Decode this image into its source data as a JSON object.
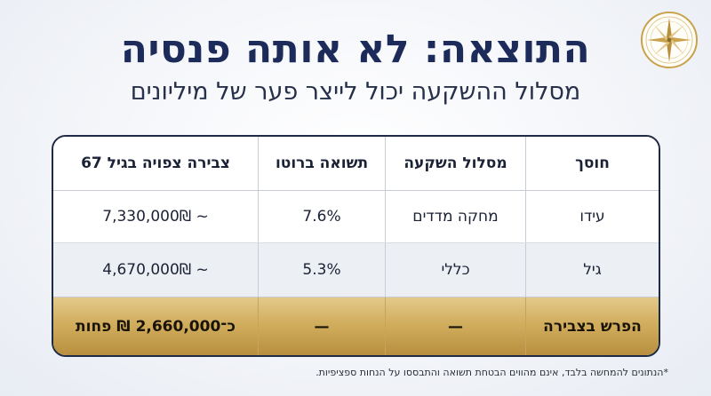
{
  "header": {
    "title": "התוצאה: לא אותה פנסיה",
    "subtitle": "מסלול ההשקעה יכול לייצר פער של מיליונים"
  },
  "logo": {
    "icon": "compass-rose-icon",
    "color": "#c9a24c"
  },
  "table": {
    "columns": [
      "חוסך",
      "מסלול השקעה",
      "תשואה ברוטו",
      "צבירה צפויה בגיל 67"
    ],
    "rows": [
      {
        "saver": "עידו",
        "track": "מחקה מדדים",
        "return": "7.6%",
        "accumulation": "7,330,000₪ ~"
      },
      {
        "saver": "גיל",
        "track": "כללי",
        "return": "5.3%",
        "accumulation": "4,670,000₪ ~"
      }
    ],
    "total": {
      "label": "הפרש בצבירה",
      "track": "—",
      "return": "—",
      "accumulation": "כ־2,660,000 ₪ פחות"
    }
  },
  "footnote": "*הנתונים להמחשה בלבד, אינם מהווים הבטחת תשואה והתבססו על הנחות ספציפיות.",
  "colors": {
    "navy": "#1d2b5a",
    "gold": "#d1ae5e",
    "row_alt": "#eceff3"
  }
}
